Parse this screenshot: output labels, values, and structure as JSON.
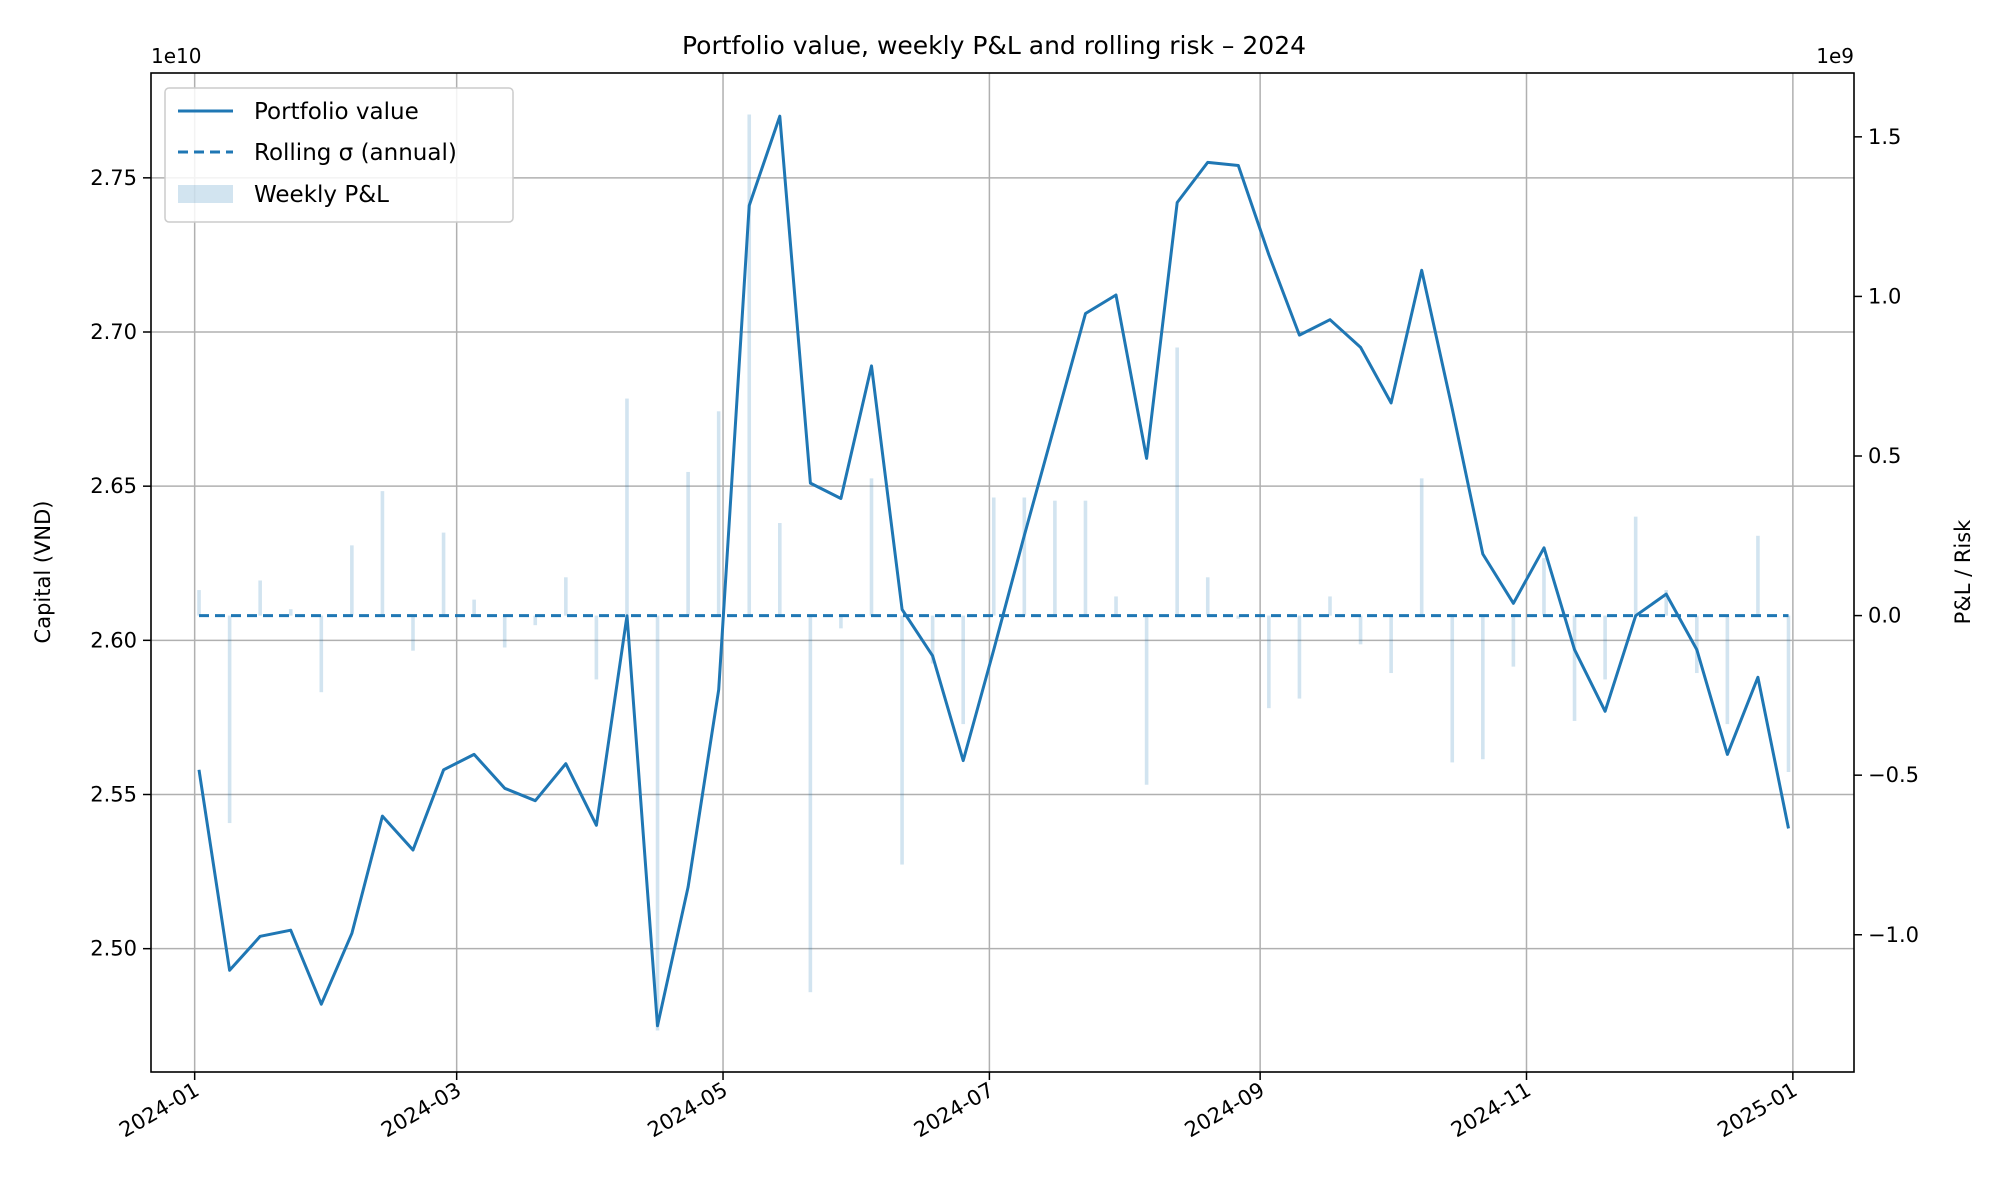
{
  "chart_data": {
    "type": "line",
    "title": "Portfolio value, weekly P&L and rolling risk – 2024",
    "ylabel": "Capital (VND)",
    "y2label": "P&L / Risk",
    "y_offset_label": "1e10",
    "y2_offset_label": "1e9",
    "xlim": [
      "2023-12-22",
      "2025-01-15"
    ],
    "ylim": [
      24.6,
      27.84
    ],
    "y2lim": [
      -1.43,
      1.7
    ],
    "x_ticks": [
      "2024-01",
      "2024-03",
      "2024-05",
      "2024-07",
      "2024-09",
      "2024-11",
      "2025-01"
    ],
    "x_tick_dates": [
      "2024-01-01",
      "2024-03-01",
      "2024-05-01",
      "2024-07-01",
      "2024-09-01",
      "2024-11-01",
      "2025-01-01"
    ],
    "y_ticks": [
      "2.50",
      "2.55",
      "2.60",
      "2.65",
      "2.70",
      "2.75"
    ],
    "y_tick_values": [
      25.0,
      25.5,
      26.0,
      26.5,
      27.0,
      27.5
    ],
    "y2_ticks": [
      "−1.0",
      "−0.5",
      "0.0",
      "0.5",
      "1.0",
      "1.5"
    ],
    "y2_tick_values": [
      -1.0,
      -0.5,
      0.0,
      0.5,
      1.0,
      1.5
    ],
    "grid": true,
    "legend_position": "upper-left",
    "legend": [
      {
        "label": "Portfolio value",
        "style": "solid-line"
      },
      {
        "label": "Rolling σ (annual)",
        "style": "dashed-line"
      },
      {
        "label": "Weekly P&L",
        "style": "bar"
      }
    ],
    "colors": {
      "line": "#1f77b4",
      "bar": "#1f77b4",
      "bar_opacity": 0.2,
      "grid": "#b0b0b0"
    },
    "dates": [
      "2024-01-02",
      "2024-01-09",
      "2024-01-16",
      "2024-01-23",
      "2024-01-30",
      "2024-02-06",
      "2024-02-13",
      "2024-02-20",
      "2024-02-27",
      "2024-03-05",
      "2024-03-12",
      "2024-03-19",
      "2024-03-26",
      "2024-04-02",
      "2024-04-09",
      "2024-04-16",
      "2024-04-23",
      "2024-04-30",
      "2024-05-07",
      "2024-05-14",
      "2024-05-21",
      "2024-05-28",
      "2024-06-04",
      "2024-06-11",
      "2024-06-18",
      "2024-06-25",
      "2024-07-02",
      "2024-07-09",
      "2024-07-16",
      "2024-07-23",
      "2024-07-30",
      "2024-08-06",
      "2024-08-13",
      "2024-08-20",
      "2024-08-27",
      "2024-09-03",
      "2024-09-10",
      "2024-09-17",
      "2024-09-24",
      "2024-10-01",
      "2024-10-08",
      "2024-10-15",
      "2024-10-22",
      "2024-10-29",
      "2024-11-05",
      "2024-11-12",
      "2024-11-19",
      "2024-11-26",
      "2024-12-03",
      "2024-12-10",
      "2024-12-17",
      "2024-12-24",
      "2024-12-31"
    ],
    "series": [
      {
        "name": "Portfolio value",
        "axis": "left",
        "style": "solid",
        "values": [
          25.58,
          24.93,
          25.04,
          25.06,
          24.82,
          25.05,
          25.43,
          25.32,
          25.58,
          25.63,
          25.52,
          25.48,
          25.6,
          25.4,
          26.08,
          24.75,
          25.2,
          25.84,
          27.41,
          27.7,
          26.51,
          26.46,
          26.89,
          26.1,
          25.95,
          25.61,
          25.97,
          26.34,
          26.7,
          27.06,
          27.12,
          26.59,
          27.42,
          27.55,
          27.54,
          27.25,
          26.99,
          27.04,
          26.95,
          26.77,
          27.2,
          26.75,
          26.28,
          26.12,
          26.3,
          25.97,
          25.77,
          26.08,
          26.15,
          25.97,
          25.63,
          25.88,
          25.39
        ]
      },
      {
        "name": "Rolling σ (annual)",
        "axis": "right",
        "style": "dashed",
        "values": [
          0,
          0,
          0,
          0,
          0,
          0,
          0,
          0,
          0,
          0,
          0,
          0,
          0,
          0,
          0,
          0,
          0,
          0,
          0,
          0,
          0,
          0,
          0,
          0,
          0,
          0,
          0,
          0,
          0,
          0,
          0,
          0,
          0,
          0,
          0,
          0,
          0,
          0,
          0,
          0,
          0,
          0,
          0,
          0,
          0,
          0,
          0,
          0,
          0,
          0,
          0,
          0,
          0
        ]
      },
      {
        "name": "Weekly P&L",
        "axis": "right",
        "style": "bar",
        "values": [
          0.08,
          -0.65,
          0.11,
          0.02,
          -0.24,
          0.22,
          0.39,
          -0.11,
          0.26,
          0.05,
          -0.1,
          -0.03,
          0.12,
          -0.2,
          0.68,
          -1.3,
          0.45,
          0.64,
          1.57,
          0.29,
          -1.18,
          -0.04,
          0.43,
          -0.78,
          -0.15,
          -0.34,
          0.37,
          0.37,
          0.36,
          0.36,
          0.06,
          -0.53,
          0.84,
          0.12,
          -0.01,
          -0.29,
          -0.26,
          0.06,
          -0.09,
          -0.18,
          0.43,
          -0.46,
          -0.45,
          -0.16,
          0.18,
          -0.33,
          -0.2,
          0.31,
          0.08,
          -0.18,
          -0.34,
          0.25,
          -0.49
        ]
      }
    ]
  }
}
